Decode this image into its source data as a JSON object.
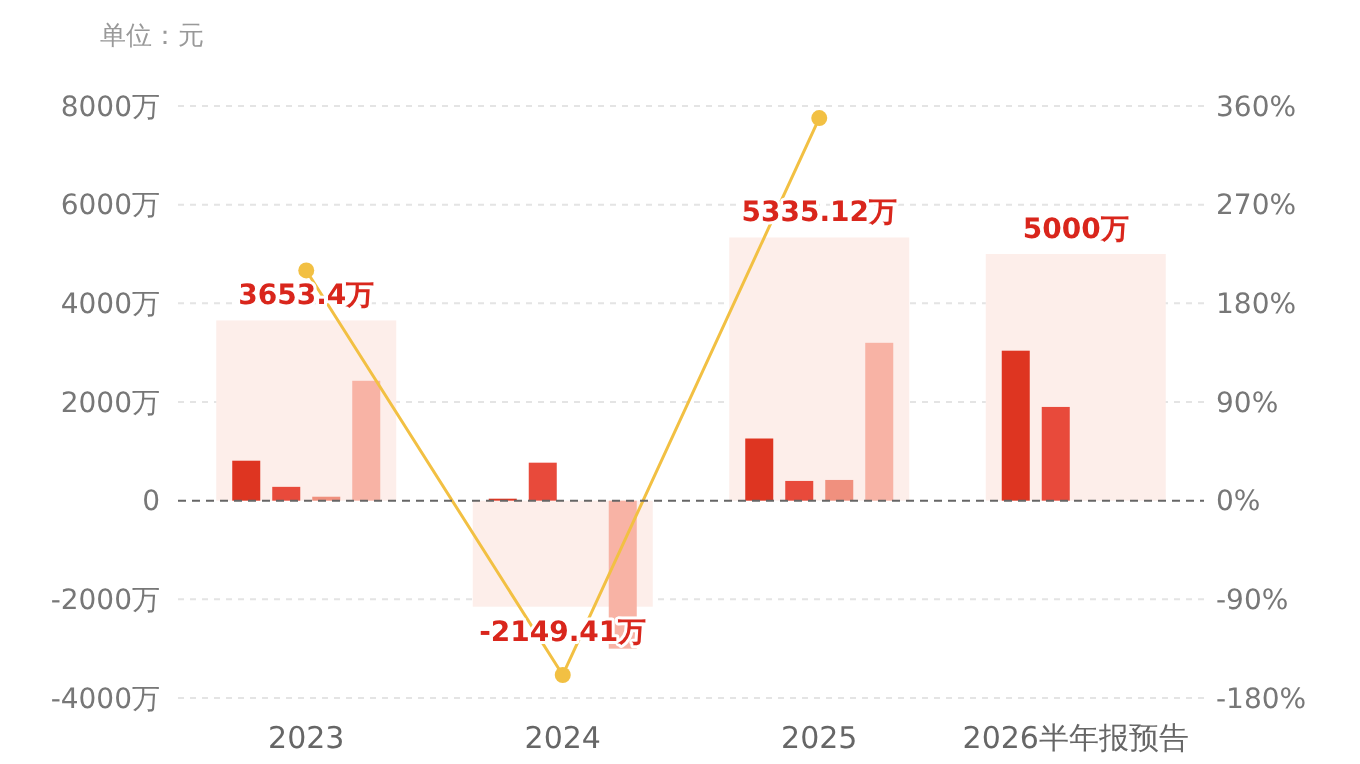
{
  "chart_data": {
    "type": "bar",
    "ylabel": "单位：元",
    "categories": [
      "2023",
      "2024",
      "2025",
      "2026半年报预告"
    ],
    "series": [
      {
        "color": "#fdeeea",
        "values": [
          3653.4,
          -2149.41,
          5335.12,
          5000
        ],
        "value_labels": [
          "3653.4万",
          "-2149.41万",
          "5335.12万",
          "5000万"
        ]
      },
      {
        "color": "#de3521",
        "values": [
          810,
          40,
          1260,
          3040
        ]
      },
      {
        "color": "#e84a3b",
        "values": [
          280,
          770,
          400,
          1900
        ]
      },
      {
        "color": "#f0907e",
        "values": [
          80,
          null,
          420,
          null
        ]
      },
      {
        "color": "#f8b3a5",
        "values": [
          2430,
          -3000,
          3200,
          null
        ]
      },
      {
        "type": "line",
        "axis": "y2",
        "color": "#f2c043",
        "marker": "circle",
        "values": [
          210,
          -159,
          349,
          null
        ]
      }
    ],
    "ylim": [
      -4000,
      8000
    ],
    "yticks": [
      {
        "value": -4000,
        "label": "-4000万"
      },
      {
        "value": -2000,
        "label": "-2000万"
      },
      0,
      {
        "value": 2000,
        "label": "2000万"
      },
      {
        "value": 4000,
        "label": "4000万"
      },
      {
        "value": 6000,
        "label": "6000万"
      },
      {
        "value": 8000,
        "label": "8000万"
      }
    ],
    "y2lim": [
      -180,
      360
    ],
    "y2ticks": [
      {
        "value": -180,
        "label": "-180%"
      },
      {
        "value": -90,
        "label": "-90%"
      },
      {
        "value": 0,
        "label": "0%"
      },
      {
        "value": 90,
        "label": "90%"
      },
      {
        "value": 180,
        "label": "180%"
      },
      {
        "value": 270,
        "label": "270%"
      },
      {
        "value": 360,
        "label": "360%"
      }
    ],
    "grid": "y",
    "ref_lines": [
      {
        "axis": "y",
        "value": 0,
        "color": "#666666",
        "line_style": "dashed"
      }
    ]
  }
}
